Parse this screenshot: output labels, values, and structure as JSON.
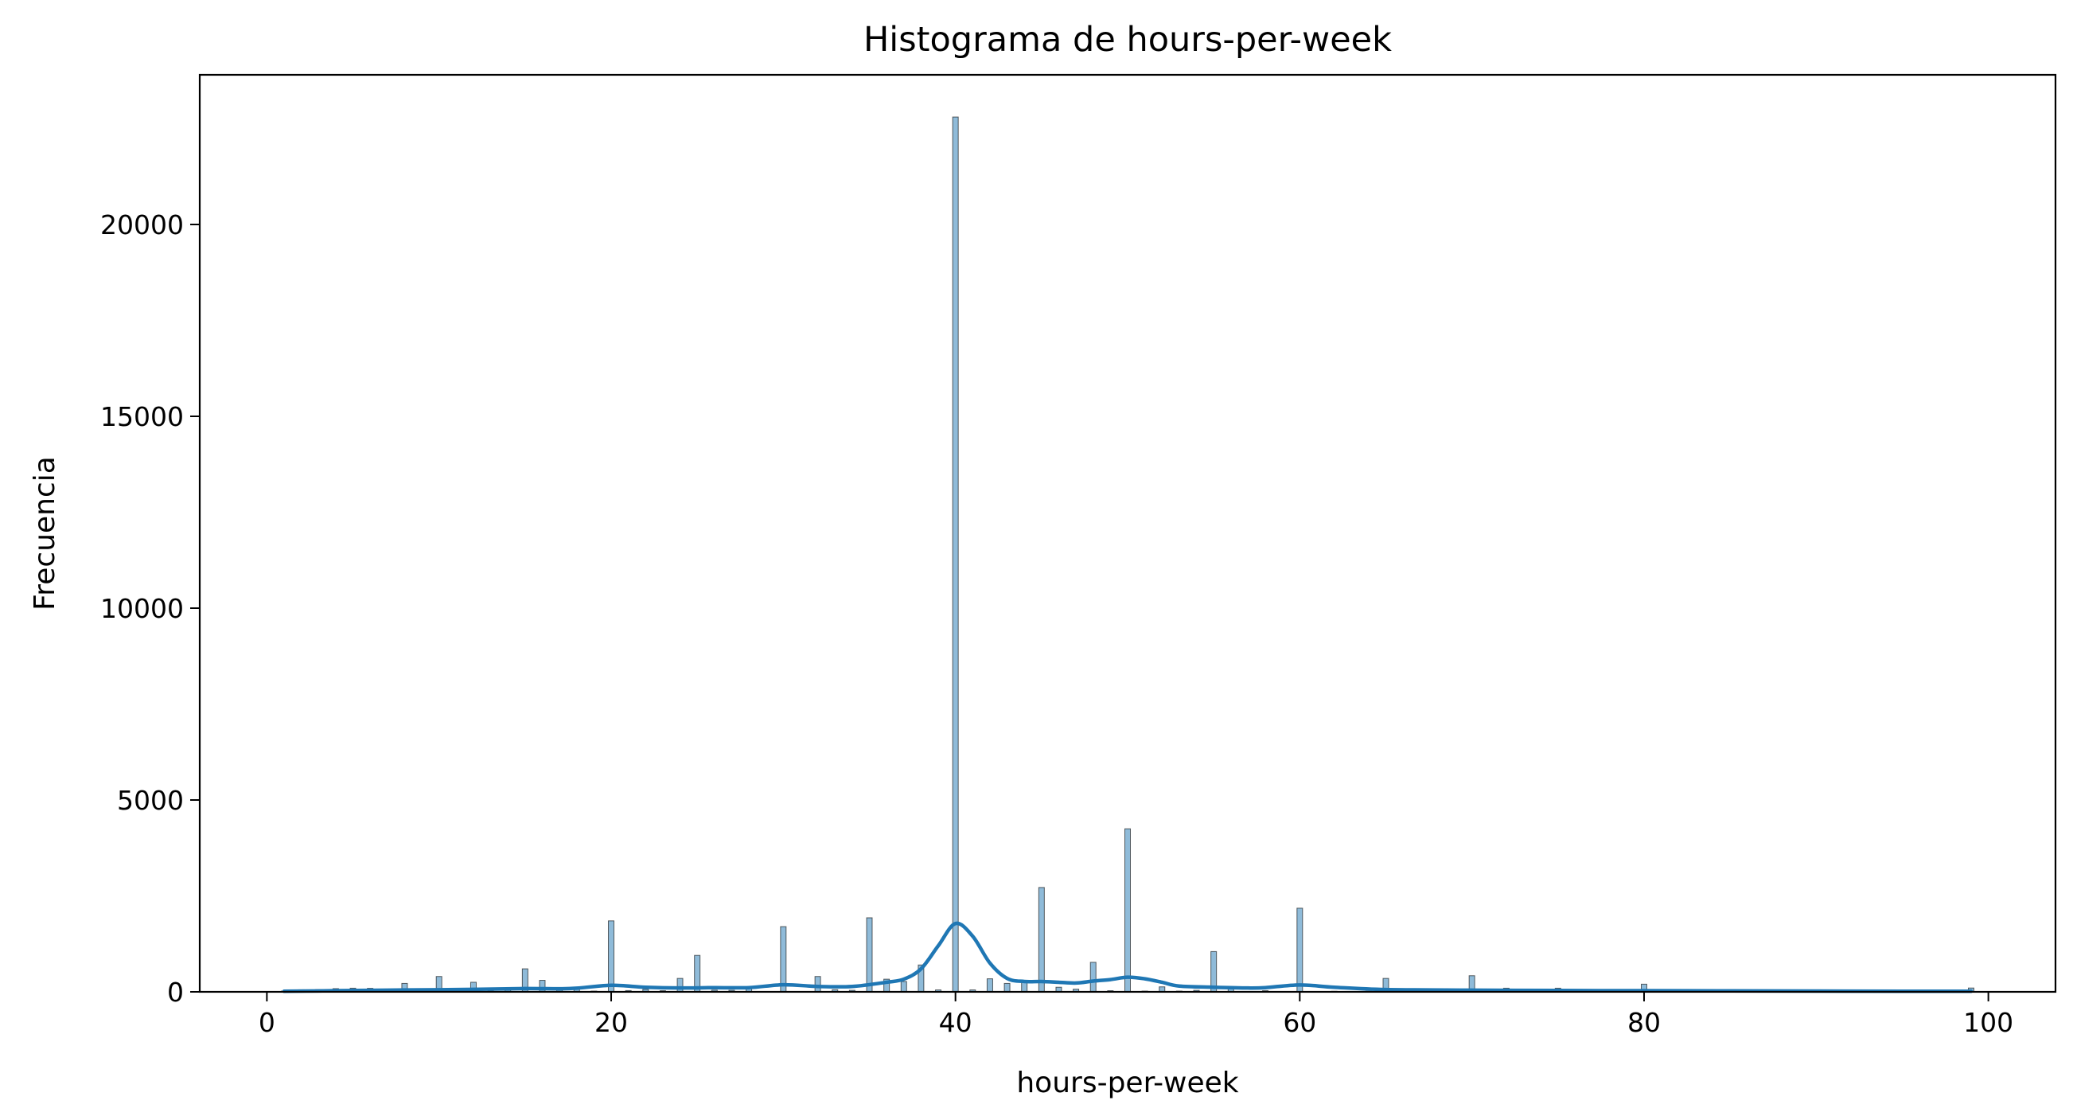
{
  "chart_data": {
    "type": "bar",
    "title": "Histograma de hours-per-week",
    "xlabel": "hours-per-week",
    "ylabel": "Frecuencia",
    "xlim": [
      -3.9,
      103.9
    ],
    "ylim": [
      0,
      23900
    ],
    "xticks": [
      0,
      20,
      40,
      60,
      80,
      100
    ],
    "yticks": [
      0,
      5000,
      10000,
      15000,
      20000
    ],
    "grid": false,
    "bar_color": "#1f77b4",
    "kde_color": "#1f77b4",
    "bins": [
      {
        "x": 1,
        "count": 20
      },
      {
        "x": 2,
        "count": 53
      },
      {
        "x": 3,
        "count": 59
      },
      {
        "x": 4,
        "count": 84
      },
      {
        "x": 5,
        "count": 95
      },
      {
        "x": 6,
        "count": 92
      },
      {
        "x": 7,
        "count": 45
      },
      {
        "x": 8,
        "count": 220
      },
      {
        "x": 9,
        "count": 28
      },
      {
        "x": 10,
        "count": 400
      },
      {
        "x": 11,
        "count": 16
      },
      {
        "x": 12,
        "count": 250
      },
      {
        "x": 13,
        "count": 34
      },
      {
        "x": 14,
        "count": 55
      },
      {
        "x": 15,
        "count": 600
      },
      {
        "x": 16,
        "count": 300
      },
      {
        "x": 17,
        "count": 44
      },
      {
        "x": 18,
        "count": 110
      },
      {
        "x": 19,
        "count": 20
      },
      {
        "x": 20,
        "count": 1850
      },
      {
        "x": 21,
        "count": 33
      },
      {
        "x": 22,
        "count": 65
      },
      {
        "x": 23,
        "count": 30
      },
      {
        "x": 24,
        "count": 350
      },
      {
        "x": 25,
        "count": 950
      },
      {
        "x": 26,
        "count": 44
      },
      {
        "x": 27,
        "count": 40
      },
      {
        "x": 28,
        "count": 130
      },
      {
        "x": 29,
        "count": 10
      },
      {
        "x": 30,
        "count": 1700
      },
      {
        "x": 31,
        "count": 8
      },
      {
        "x": 32,
        "count": 400
      },
      {
        "x": 33,
        "count": 55
      },
      {
        "x": 34,
        "count": 40
      },
      {
        "x": 35,
        "count": 1930
      },
      {
        "x": 36,
        "count": 330
      },
      {
        "x": 37,
        "count": 270
      },
      {
        "x": 38,
        "count": 700
      },
      {
        "x": 39,
        "count": 50
      },
      {
        "x": 40,
        "count": 22800
      },
      {
        "x": 41,
        "count": 50
      },
      {
        "x": 42,
        "count": 340
      },
      {
        "x": 43,
        "count": 220
      },
      {
        "x": 44,
        "count": 300
      },
      {
        "x": 45,
        "count": 2720
      },
      {
        "x": 46,
        "count": 120
      },
      {
        "x": 47,
        "count": 70
      },
      {
        "x": 48,
        "count": 770
      },
      {
        "x": 49,
        "count": 30
      },
      {
        "x": 50,
        "count": 4250
      },
      {
        "x": 51,
        "count": 20
      },
      {
        "x": 52,
        "count": 130
      },
      {
        "x": 53,
        "count": 20
      },
      {
        "x": 54,
        "count": 40
      },
      {
        "x": 55,
        "count": 1050
      },
      {
        "x": 56,
        "count": 90
      },
      {
        "x": 57,
        "count": 10
      },
      {
        "x": 58,
        "count": 30
      },
      {
        "x": 59,
        "count": 5
      },
      {
        "x": 60,
        "count": 2180
      },
      {
        "x": 61,
        "count": 5
      },
      {
        "x": 62,
        "count": 15
      },
      {
        "x": 63,
        "count": 10
      },
      {
        "x": 64,
        "count": 15
      },
      {
        "x": 65,
        "count": 350
      },
      {
        "x": 66,
        "count": 15
      },
      {
        "x": 67,
        "count": 5
      },
      {
        "x": 68,
        "count": 10
      },
      {
        "x": 69,
        "count": 5
      },
      {
        "x": 70,
        "count": 420
      },
      {
        "x": 72,
        "count": 95
      },
      {
        "x": 73,
        "count": 5
      },
      {
        "x": 74,
        "count": 5
      },
      {
        "x": 75,
        "count": 95
      },
      {
        "x": 76,
        "count": 5
      },
      {
        "x": 77,
        "count": 5
      },
      {
        "x": 78,
        "count": 10
      },
      {
        "x": 80,
        "count": 200
      },
      {
        "x": 81,
        "count": 5
      },
      {
        "x": 84,
        "count": 60
      },
      {
        "x": 85,
        "count": 15
      },
      {
        "x": 86,
        "count": 5
      },
      {
        "x": 87,
        "count": 5
      },
      {
        "x": 88,
        "count": 5
      },
      {
        "x": 89,
        "count": 5
      },
      {
        "x": 90,
        "count": 40
      },
      {
        "x": 91,
        "count": 5
      },
      {
        "x": 92,
        "count": 5
      },
      {
        "x": 94,
        "count": 5
      },
      {
        "x": 95,
        "count": 5
      },
      {
        "x": 96,
        "count": 10
      },
      {
        "x": 97,
        "count": 5
      },
      {
        "x": 98,
        "count": 15
      },
      {
        "x": 99,
        "count": 100
      }
    ],
    "kde": {
      "x": [
        1,
        4,
        7,
        10,
        12,
        15,
        17,
        18,
        20,
        22,
        24,
        26,
        28,
        30,
        32,
        34,
        36,
        37,
        38,
        39,
        40,
        41,
        42,
        43,
        44,
        45,
        46,
        47,
        48,
        49,
        50,
        51,
        52,
        53,
        55,
        57,
        58,
        60,
        62,
        65,
        70,
        75,
        80,
        85,
        90,
        95,
        99
      ],
      "y": [
        15,
        30,
        45,
        55,
        65,
        85,
        80,
        95,
        170,
        120,
        100,
        110,
        110,
        185,
        140,
        140,
        250,
        330,
        600,
        1200,
        1780,
        1450,
        750,
        350,
        270,
        270,
        250,
        230,
        280,
        320,
        380,
        340,
        250,
        150,
        120,
        100,
        110,
        180,
        120,
        60,
        45,
        35,
        30,
        25,
        20,
        15,
        15
      ]
    }
  }
}
